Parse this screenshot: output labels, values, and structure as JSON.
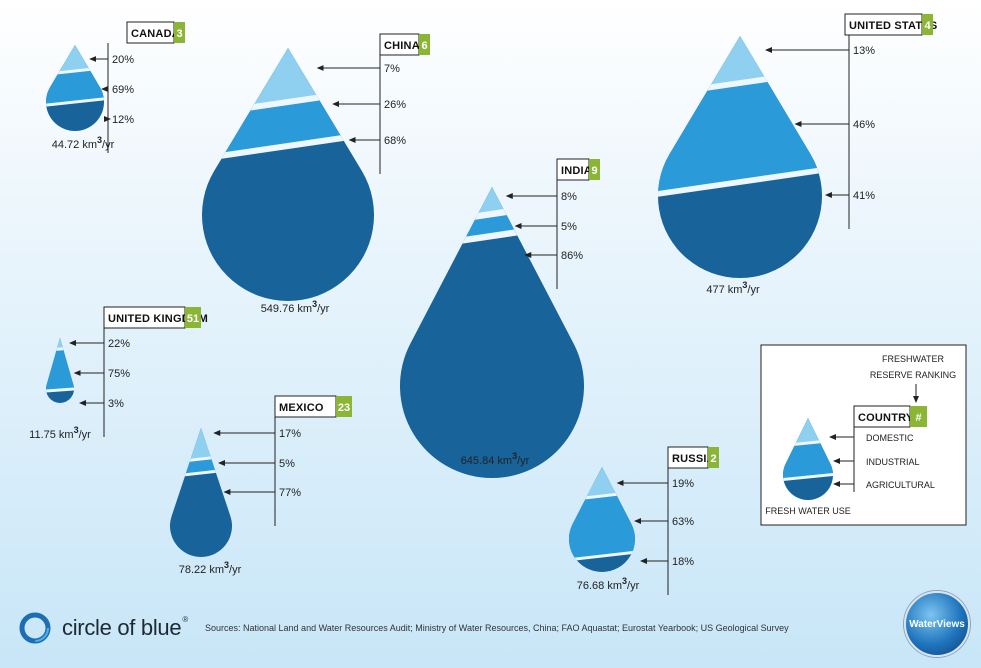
{
  "colors": {
    "domestic": "#8fcff0",
    "industrial": "#2a9ad8",
    "agricultural": "#17639a",
    "rank_bg": "#8ab535"
  },
  "countries": [
    {
      "id": "canada",
      "name": "CANADA",
      "rank": "3",
      "domestic": "20%",
      "industrial": "69%",
      "agricultural": "12%",
      "volume": "44.72 km",
      "unit": "/yr",
      "sup": "3"
    },
    {
      "id": "china",
      "name": "CHINA",
      "rank": "6",
      "domestic": "7%",
      "industrial": "26%",
      "agricultural": "68%",
      "volume": "549.76 km",
      "unit": "/yr",
      "sup": "3"
    },
    {
      "id": "united-states",
      "name": "UNITED STATES",
      "rank": "4",
      "domestic": "13%",
      "industrial": "46%",
      "agricultural": "41%",
      "volume": "477 km",
      "unit": "/yr",
      "sup": "3"
    },
    {
      "id": "india",
      "name": "INDIA",
      "rank": "9",
      "domestic": "8%",
      "industrial": "5%",
      "agricultural": "86%",
      "volume": "645.84 km",
      "unit": "/yr",
      "sup": "3"
    },
    {
      "id": "united-kingdom",
      "name": "UNITED KINGDOM",
      "rank": "51",
      "domestic": "22%",
      "industrial": "75%",
      "agricultural": "3%",
      "volume": "11.75 km",
      "unit": "/yr",
      "sup": "3"
    },
    {
      "id": "mexico",
      "name": "MEXICO",
      "rank": "23",
      "domestic": "17%",
      "industrial": "5%",
      "agricultural": "77%",
      "volume": "78.22 km",
      "unit": "/yr",
      "sup": "3"
    },
    {
      "id": "russia",
      "name": "RUSSIA",
      "rank": "2",
      "domestic": "19%",
      "industrial": "63%",
      "agricultural": "18%",
      "volume": "76.68 km",
      "unit": "/yr",
      "sup": "3"
    }
  ],
  "legend": {
    "ranking_line1": "FRESHWATER",
    "ranking_line2": "RESERVE RANKING",
    "country": "COUNTRY",
    "rank_symbol": "#",
    "domestic": "DOMESTIC",
    "industrial": "INDUSTRIAL",
    "agricultural": "AGRICULTURAL",
    "caption": "FRESH WATER USE"
  },
  "footer": {
    "logo": "circle of blue",
    "logo_tm": "®",
    "sources": "Sources: National Land and Water Resources Audit; Ministry of Water Resources, China; FAO Aquastat; Eurostat Yearbook; US Geological Survey",
    "badge": "WaterViews"
  }
}
